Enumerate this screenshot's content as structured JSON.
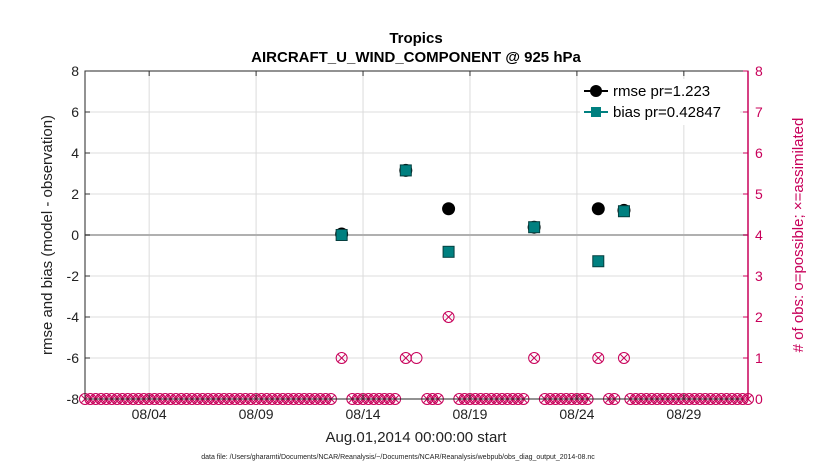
{
  "chart_data": {
    "type": "scatter",
    "title": "Tropics",
    "subtitle": "AIRCRAFT_U_WIND_COMPONENT @ 925 hPa",
    "xlabel": "Aug.01,2014 00:00:00 start",
    "ylabel": "rmse and bias (model - observation)",
    "y2label": "# of obs: o=possible; ×=assimilated",
    "footnote": "data file: /Users/gharamti/Documents/NCAR/Reanalysis/~/Documents/NCAR/Reanalysis/webpub/obs_diag_output_2014-08.nc",
    "xlim": [
      1.0,
      32.0
    ],
    "ylim": [
      -8,
      8
    ],
    "y2lim": [
      0,
      8
    ],
    "x_ticks": [
      4,
      9,
      14,
      19,
      24,
      29
    ],
    "x_tick_labels": [
      "08/04",
      "08/09",
      "08/14",
      "08/19",
      "08/24",
      "08/29"
    ],
    "y_ticks": [
      -8,
      -6,
      -4,
      -2,
      0,
      2,
      4,
      6,
      8
    ],
    "y_tick_labels": [
      "-8",
      "-6",
      "-4",
      "-2",
      "0",
      "2",
      "4",
      "6",
      "8"
    ],
    "y2_ticks": [
      0,
      1,
      2,
      3,
      4,
      5,
      6,
      7,
      8
    ],
    "y2_tick_labels": [
      "0",
      "1",
      "2",
      "3",
      "4",
      "5",
      "6",
      "7",
      "8"
    ],
    "legend_position": "top-right",
    "series": [
      {
        "name": "rmse pr=1.223",
        "color": "#000000",
        "marker": "circle",
        "axis": "left",
        "x": [
          13.0,
          16.0,
          18.0,
          22.0,
          25.0,
          26.2
        ],
        "y": [
          0.05,
          3.15,
          1.28,
          0.38,
          1.28,
          1.2
        ]
      },
      {
        "name": "bias pr=0.42847",
        "color": "#008080",
        "marker": "square",
        "axis": "left",
        "x": [
          13.0,
          16.0,
          18.0,
          22.0,
          25.0,
          26.2
        ],
        "y": [
          0.0,
          3.15,
          -0.82,
          0.38,
          -1.28,
          1.16
        ]
      },
      {
        "name": "obs possible",
        "color": "#c8005a",
        "marker": "open-circle",
        "axis": "right",
        "x": [
          13.0,
          16.0,
          16.5,
          18.0,
          22.0,
          25.0,
          26.2
        ],
        "y": [
          1,
          1,
          1,
          2,
          1,
          1,
          1
        ]
      },
      {
        "name": "obs assimilated",
        "color": "#c8005a",
        "marker": "x",
        "axis": "right",
        "x": [
          13.0,
          16.0,
          18.0,
          22.0,
          25.0,
          26.2
        ],
        "y": [
          1,
          1,
          2,
          1,
          1,
          1
        ]
      }
    ],
    "zero_count_spacing_days": 0.25,
    "grid": true,
    "zero_line": 0
  },
  "colors": {
    "axis": "#333333",
    "right_axis": "#c8005a",
    "grid": "#dcdcdc",
    "zero_line": "#b0b0b0"
  }
}
